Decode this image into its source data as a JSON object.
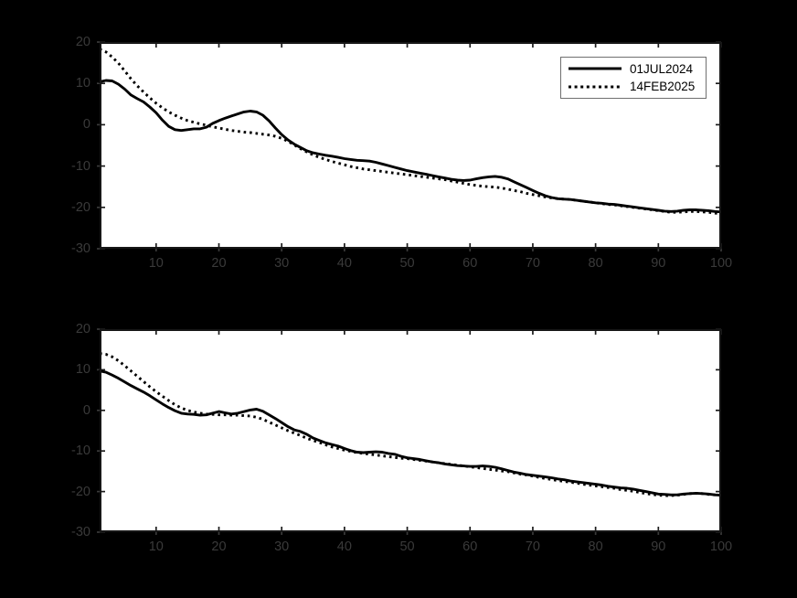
{
  "figure": {
    "background_color": "#000000",
    "plot_background_color": "#ffffff",
    "curve_color": "#000000",
    "tick_label_color": "#3a3a3a",
    "axis_box_color": "#161616",
    "legend_border_color": "#6f6f6f",
    "legend_background_color": "#ffffff"
  },
  "legend": {
    "entries": [
      {
        "label": "01JUL2024",
        "style": "solid"
      },
      {
        "label": "14FEB2025",
        "style": "dotted"
      }
    ]
  },
  "chart_data": [
    {
      "type": "line",
      "title": "",
      "xlabel": "",
      "ylabel": "",
      "grid": false,
      "legend_position": "top-right-inside",
      "xlim": [
        1,
        100
      ],
      "ylim": [
        -30,
        20
      ],
      "xticks": [
        10,
        20,
        30,
        40,
        50,
        60,
        70,
        80,
        90,
        100
      ],
      "yticks": [
        20,
        10,
        0,
        -10,
        -20,
        -30
      ],
      "x": [
        1,
        2,
        3,
        4,
        5,
        6,
        7,
        8,
        9,
        10,
        11,
        12,
        13,
        14,
        15,
        16,
        17,
        18,
        19,
        20,
        21,
        22,
        23,
        24,
        25,
        26,
        27,
        28,
        29,
        30,
        31,
        32,
        33,
        34,
        35,
        36,
        37,
        38,
        39,
        40,
        41,
        42,
        43,
        44,
        45,
        46,
        47,
        48,
        49,
        50,
        51,
        52,
        53,
        54,
        55,
        56,
        57,
        58,
        59,
        60,
        61,
        62,
        63,
        64,
        65,
        66,
        67,
        68,
        69,
        70,
        71,
        72,
        73,
        74,
        75,
        76,
        77,
        78,
        79,
        80,
        81,
        82,
        83,
        84,
        85,
        86,
        87,
        88,
        89,
        90,
        91,
        92,
        93,
        94,
        95,
        96,
        97,
        98,
        99,
        100
      ],
      "series": [
        {
          "name": "01JUL2024",
          "style": "solid",
          "values": [
            10.4,
            10.7,
            10.6,
            9.8,
            8.6,
            7.2,
            6.3,
            5.5,
            4.3,
            2.9,
            1.1,
            -0.4,
            -1.2,
            -1.4,
            -1.2,
            -1.0,
            -1.0,
            -0.6,
            0.3,
            1.0,
            1.6,
            2.1,
            2.6,
            3.1,
            3.3,
            3.1,
            2.3,
            0.9,
            -0.8,
            -2.4,
            -3.7,
            -4.7,
            -5.5,
            -6.3,
            -6.8,
            -7.1,
            -7.4,
            -7.6,
            -7.9,
            -8.2,
            -8.4,
            -8.6,
            -8.7,
            -8.8,
            -9.1,
            -9.5,
            -9.9,
            -10.3,
            -10.7,
            -11.1,
            -11.4,
            -11.7,
            -12.0,
            -12.3,
            -12.6,
            -12.9,
            -13.2,
            -13.4,
            -13.5,
            -13.4,
            -13.1,
            -12.8,
            -12.6,
            -12.5,
            -12.7,
            -13.1,
            -13.8,
            -14.5,
            -15.2,
            -15.9,
            -16.6,
            -17.2,
            -17.6,
            -17.9,
            -18.0,
            -18.1,
            -18.3,
            -18.5,
            -18.7,
            -18.9,
            -19.0,
            -19.2,
            -19.3,
            -19.5,
            -19.7,
            -19.9,
            -20.1,
            -20.3,
            -20.5,
            -20.7,
            -20.9,
            -21.0,
            -20.9,
            -20.7,
            -20.6,
            -20.6,
            -20.7,
            -20.8,
            -21.0,
            -21.1
          ]
        },
        {
          "name": "14FEB2025",
          "style": "dotted",
          "values": [
            18.3,
            17.6,
            16.4,
            14.9,
            13.0,
            11.1,
            9.4,
            7.9,
            6.5,
            5.2,
            4.1,
            3.1,
            2.3,
            1.6,
            1.0,
            0.6,
            0.2,
            -0.1,
            -0.5,
            -0.8,
            -1.1,
            -1.4,
            -1.6,
            -1.8,
            -1.9,
            -2.1,
            -2.3,
            -2.5,
            -2.8,
            -3.3,
            -4.0,
            -4.9,
            -5.8,
            -6.6,
            -7.3,
            -7.9,
            -8.4,
            -8.9,
            -9.3,
            -9.7,
            -10.1,
            -10.4,
            -10.7,
            -10.9,
            -11.1,
            -11.3,
            -11.5,
            -11.7,
            -11.9,
            -12.1,
            -12.3,
            -12.5,
            -12.7,
            -12.9,
            -13.1,
            -13.3,
            -13.6,
            -13.9,
            -14.2,
            -14.5,
            -14.7,
            -14.9,
            -15.0,
            -15.1,
            -15.3,
            -15.6,
            -15.9,
            -16.2,
            -16.6,
            -16.9,
            -17.2,
            -17.5,
            -17.7,
            -17.9,
            -18.0,
            -18.1,
            -18.3,
            -18.5,
            -18.7,
            -18.9,
            -19.1,
            -19.3,
            -19.4,
            -19.6,
            -19.8,
            -20.0,
            -20.2,
            -20.4,
            -20.6,
            -20.8,
            -21.0,
            -21.2,
            -21.2,
            -21.1,
            -21.0,
            -21.0,
            -21.1,
            -21.2,
            -21.4,
            -21.5
          ]
        }
      ]
    },
    {
      "type": "line",
      "title": "",
      "xlabel": "",
      "ylabel": "",
      "grid": false,
      "legend_position": "none",
      "xlim": [
        1,
        100
      ],
      "ylim": [
        -30,
        20
      ],
      "xticks": [
        10,
        20,
        30,
        40,
        50,
        60,
        70,
        80,
        90,
        100
      ],
      "yticks": [
        20,
        10,
        0,
        -10,
        -20,
        -30
      ],
      "x": [
        1,
        2,
        3,
        4,
        5,
        6,
        7,
        8,
        9,
        10,
        11,
        12,
        13,
        14,
        15,
        16,
        17,
        18,
        19,
        20,
        21,
        22,
        23,
        24,
        25,
        26,
        27,
        28,
        29,
        30,
        31,
        32,
        33,
        34,
        35,
        36,
        37,
        38,
        39,
        40,
        41,
        42,
        43,
        44,
        45,
        46,
        47,
        48,
        49,
        50,
        51,
        52,
        53,
        54,
        55,
        56,
        57,
        58,
        59,
        60,
        61,
        62,
        63,
        64,
        65,
        66,
        67,
        68,
        69,
        70,
        71,
        72,
        73,
        74,
        75,
        76,
        77,
        78,
        79,
        80,
        81,
        82,
        83,
        84,
        85,
        86,
        87,
        88,
        89,
        90,
        91,
        92,
        93,
        94,
        95,
        96,
        97,
        98,
        99,
        100
      ],
      "series": [
        {
          "name": "01JUL2024",
          "style": "solid",
          "values": [
            9.7,
            9.4,
            8.7,
            7.9,
            7.0,
            6.1,
            5.3,
            4.5,
            3.6,
            2.6,
            1.6,
            0.7,
            -0.1,
            -0.7,
            -0.9,
            -1.0,
            -1.2,
            -1.1,
            -0.7,
            -0.3,
            -0.6,
            -0.9,
            -0.7,
            -0.3,
            0.1,
            0.3,
            -0.2,
            -1.1,
            -2.0,
            -3.0,
            -4.0,
            -4.8,
            -5.2,
            -5.9,
            -6.8,
            -7.4,
            -8.0,
            -8.4,
            -8.8,
            -9.4,
            -9.9,
            -10.3,
            -10.4,
            -10.3,
            -10.2,
            -10.3,
            -10.6,
            -10.8,
            -11.3,
            -11.7,
            -11.9,
            -12.1,
            -12.4,
            -12.7,
            -12.9,
            -13.2,
            -13.4,
            -13.6,
            -13.7,
            -13.8,
            -13.8,
            -13.7,
            -13.8,
            -14.0,
            -14.4,
            -14.8,
            -15.2,
            -15.5,
            -15.8,
            -16.0,
            -16.2,
            -16.4,
            -16.6,
            -16.9,
            -17.1,
            -17.4,
            -17.6,
            -17.8,
            -18.0,
            -18.2,
            -18.4,
            -18.7,
            -18.9,
            -19.1,
            -19.2,
            -19.4,
            -19.7,
            -20.0,
            -20.3,
            -20.6,
            -20.7,
            -20.8,
            -20.8,
            -20.6,
            -20.5,
            -20.4,
            -20.5,
            -20.6,
            -20.8,
            -20.9
          ]
        },
        {
          "name": "14FEB2025",
          "style": "dotted",
          "values": [
            14.0,
            13.8,
            13.2,
            12.2,
            11.0,
            9.7,
            8.4,
            7.1,
            5.8,
            4.6,
            3.5,
            2.4,
            1.4,
            0.6,
            0.0,
            -0.4,
            -0.7,
            -0.9,
            -1.0,
            -1.1,
            -1.1,
            -1.2,
            -1.2,
            -1.3,
            -1.4,
            -1.7,
            -2.2,
            -2.9,
            -3.6,
            -4.3,
            -5.0,
            -5.6,
            -6.2,
            -6.9,
            -7.4,
            -7.9,
            -8.5,
            -9.0,
            -9.4,
            -9.8,
            -10.1,
            -10.4,
            -10.6,
            -10.8,
            -11.0,
            -11.2,
            -11.4,
            -11.6,
            -11.8,
            -11.9,
            -12.1,
            -12.3,
            -12.5,
            -12.7,
            -12.9,
            -13.1,
            -13.3,
            -13.5,
            -13.7,
            -13.9,
            -14.1,
            -14.3,
            -14.5,
            -14.7,
            -14.9,
            -15.1,
            -15.4,
            -15.7,
            -15.9,
            -16.2,
            -16.5,
            -16.8,
            -17.0,
            -17.3,
            -17.5,
            -17.7,
            -17.9,
            -18.2,
            -18.4,
            -18.6,
            -18.8,
            -19.0,
            -19.2,
            -19.5,
            -19.7,
            -19.9,
            -20.2,
            -20.5,
            -20.7,
            -20.9,
            -21.0,
            -21.0,
            -20.9,
            -20.7,
            -20.5,
            -20.4,
            -20.5,
            -20.7,
            -20.8,
            -20.9
          ]
        }
      ]
    }
  ]
}
